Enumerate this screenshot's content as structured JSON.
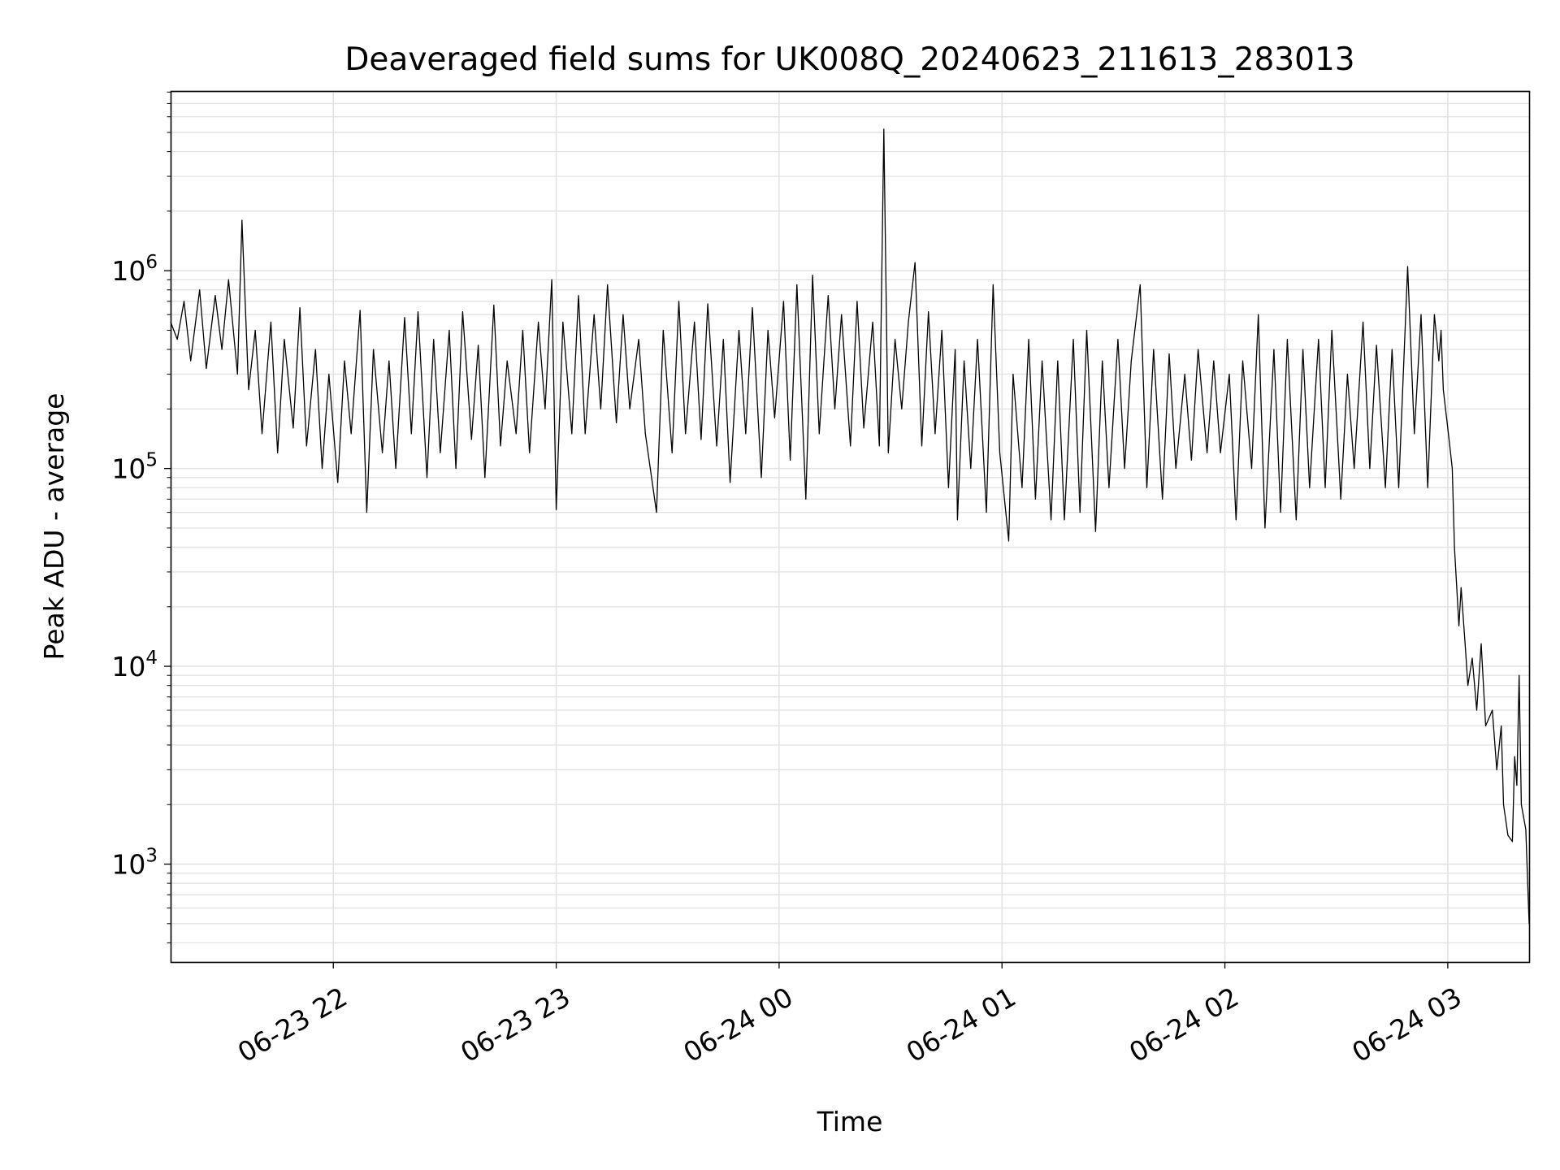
{
  "chart_data": {
    "type": "line",
    "title": "Deaveraged field sums for UK008Q_20240623_211613_283013",
    "xlabel": "Time",
    "ylabel": "Peak ADU - average",
    "x_units": "hours since 2024-06-23 00:00",
    "xlim": [
      21.27,
      27.365
    ],
    "ylim": [
      320,
      8100000
    ],
    "yscale": "log",
    "grid": true,
    "x_ticks": [
      {
        "value": 22,
        "label": "06-23 22"
      },
      {
        "value": 23,
        "label": "06-23 23"
      },
      {
        "value": 24,
        "label": "06-24 00"
      },
      {
        "value": 25,
        "label": "06-24 01"
      },
      {
        "value": 26,
        "label": "06-24 02"
      },
      {
        "value": 27,
        "label": "06-24 03"
      }
    ],
    "y_ticks": [
      {
        "value": 1000,
        "base": "10",
        "exp": "3"
      },
      {
        "value": 10000,
        "base": "10",
        "exp": "4"
      },
      {
        "value": 100000,
        "base": "10",
        "exp": "5"
      },
      {
        "value": 1000000,
        "base": "10",
        "exp": "6"
      }
    ],
    "series": [
      {
        "name": "field sums",
        "color": "#000000",
        "x": [
          21.27,
          21.3,
          21.33,
          21.36,
          21.4,
          21.43,
          21.47,
          21.5,
          21.53,
          21.57,
          21.59,
          21.62,
          21.65,
          21.68,
          21.72,
          21.75,
          21.78,
          21.82,
          21.85,
          21.88,
          21.92,
          21.95,
          21.98,
          22.02,
          22.05,
          22.08,
          22.12,
          22.15,
          22.18,
          22.22,
          22.25,
          22.28,
          22.32,
          22.35,
          22.38,
          22.42,
          22.45,
          22.48,
          22.52,
          22.55,
          22.58,
          22.62,
          22.65,
          22.68,
          22.72,
          22.75,
          22.78,
          22.82,
          22.85,
          22.88,
          22.92,
          22.95,
          22.98,
          23.0,
          23.03,
          23.07,
          23.1,
          23.13,
          23.17,
          23.2,
          23.23,
          23.27,
          23.3,
          23.33,
          23.37,
          23.4,
          23.45,
          23.48,
          23.52,
          23.55,
          23.58,
          23.62,
          23.65,
          23.68,
          23.72,
          23.75,
          23.78,
          23.82,
          23.85,
          23.88,
          23.92,
          23.95,
          23.98,
          24.02,
          24.05,
          24.08,
          24.12,
          24.15,
          24.18,
          24.22,
          24.25,
          24.28,
          24.32,
          24.35,
          24.38,
          24.42,
          24.45,
          24.47,
          24.49,
          24.52,
          24.55,
          24.58,
          24.61,
          24.64,
          24.67,
          24.7,
          24.73,
          24.76,
          24.79,
          24.8,
          24.83,
          24.86,
          24.89,
          24.93,
          24.96,
          24.99,
          25.03,
          25.05,
          25.09,
          25.12,
          25.15,
          25.18,
          25.22,
          25.25,
          25.28,
          25.32,
          25.35,
          25.38,
          25.42,
          25.45,
          25.48,
          25.52,
          25.55,
          25.58,
          25.62,
          25.65,
          25.68,
          25.72,
          25.75,
          25.78,
          25.82,
          25.85,
          25.88,
          25.92,
          25.95,
          25.98,
          26.02,
          26.05,
          26.08,
          26.12,
          26.15,
          26.18,
          26.22,
          26.25,
          26.28,
          26.32,
          26.35,
          26.38,
          26.42,
          26.45,
          26.48,
          26.52,
          26.55,
          26.58,
          26.62,
          26.65,
          26.68,
          26.72,
          26.75,
          26.78,
          26.82,
          26.85,
          26.88,
          26.91,
          26.94,
          26.96,
          26.97,
          26.98,
          26.99,
          27.0,
          27.02,
          27.03,
          27.05,
          27.06,
          27.08,
          27.09,
          27.11,
          27.13,
          27.15,
          27.17,
          27.2,
          27.22,
          27.24,
          27.25,
          27.27,
          27.29,
          27.3,
          27.31,
          27.32,
          27.33,
          27.35,
          27.365
        ],
        "y": [
          550000,
          450000,
          700000,
          350000,
          800000,
          320000,
          750000,
          400000,
          900000,
          300000,
          1800000,
          250000,
          500000,
          150000,
          550000,
          120000,
          450000,
          160000,
          650000,
          130000,
          400000,
          100000,
          300000,
          85000,
          350000,
          150000,
          630000,
          60000,
          400000,
          120000,
          350000,
          100000,
          580000,
          150000,
          620000,
          90000,
          450000,
          120000,
          500000,
          100000,
          620000,
          140000,
          420000,
          90000,
          670000,
          130000,
          350000,
          150000,
          500000,
          120000,
          550000,
          200000,
          900000,
          62000,
          550000,
          150000,
          750000,
          150000,
          600000,
          200000,
          850000,
          170000,
          600000,
          200000,
          450000,
          150000,
          60000,
          500000,
          120000,
          700000,
          150000,
          550000,
          140000,
          680000,
          130000,
          450000,
          85000,
          500000,
          150000,
          650000,
          90000,
          500000,
          180000,
          700000,
          110000,
          850000,
          70000,
          950000,
          150000,
          750000,
          200000,
          600000,
          130000,
          700000,
          160000,
          550000,
          130000,
          5200000,
          120000,
          450000,
          200000,
          550000,
          1100000,
          130000,
          620000,
          150000,
          500000,
          80000,
          400000,
          55000,
          350000,
          100000,
          450000,
          60000,
          850000,
          120000,
          43000,
          300000,
          80000,
          450000,
          70000,
          350000,
          55000,
          350000,
          55000,
          450000,
          60000,
          500000,
          48000,
          350000,
          80000,
          450000,
          100000,
          350000,
          850000,
          80000,
          400000,
          70000,
          380000,
          100000,
          300000,
          110000,
          400000,
          120000,
          350000,
          120000,
          300000,
          55000,
          350000,
          100000,
          600000,
          50000,
          400000,
          60000,
          450000,
          55000,
          400000,
          80000,
          450000,
          80000,
          500000,
          70000,
          300000,
          100000,
          550000,
          100000,
          420000,
          80000,
          400000,
          80000,
          1050000,
          150000,
          600000,
          80000,
          600000,
          350000,
          500000,
          250000,
          200000,
          160000,
          100000,
          40000,
          16000,
          25000,
          12000,
          8000,
          11000,
          6000,
          13000,
          5000,
          6000,
          3000,
          5000,
          2000,
          1400,
          1300,
          3500,
          2500,
          9000,
          2000,
          1500,
          500
        ]
      }
    ]
  }
}
